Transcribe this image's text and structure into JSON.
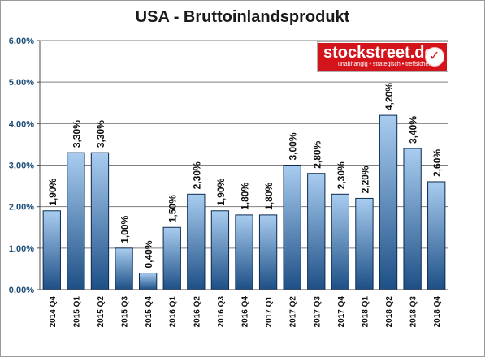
{
  "chart_data": {
    "type": "bar",
    "title": "USA - Bruttoinlandsprodukt",
    "categories": [
      "2014 Q4",
      "2015 Q1",
      "2015 Q2",
      "2015 Q3",
      "2015 Q4",
      "2016 Q1",
      "2016 Q2",
      "2016 Q3",
      "2016 Q4",
      "2017 Q1",
      "2017 Q2",
      "2017 Q3",
      "2017 Q4",
      "2018 Q1",
      "2018 Q2",
      "2018 Q3",
      "2018 Q4"
    ],
    "values": [
      1.9,
      3.3,
      3.3,
      1.0,
      0.4,
      1.5,
      2.3,
      1.9,
      1.8,
      1.8,
      3.0,
      2.8,
      2.3,
      2.2,
      4.2,
      3.4,
      2.6
    ],
    "data_labels": [
      "1,90%",
      "3,30%",
      "3,30%",
      "1,00%",
      "0,40%",
      "1,50%",
      "2,30%",
      "1,90%",
      "1,80%",
      "1,80%",
      "3,00%",
      "2,80%",
      "2,30%",
      "2,20%",
      "4,20%",
      "3,40%",
      "2,60%"
    ],
    "yticks": [
      0,
      1,
      2,
      3,
      4,
      5,
      6
    ],
    "ytick_labels": [
      "0,00%",
      "1,00%",
      "2,00%",
      "3,00%",
      "4,00%",
      "5,00%",
      "6,00%"
    ],
    "ylim": [
      0,
      6
    ],
    "xlabel": "",
    "ylabel": "",
    "grid": true,
    "legend": false,
    "colors": {
      "bar_top": "#a9cdf0",
      "bar_bottom": "#1d4f86",
      "bar_stroke": "#0d2a4d",
      "axis_label": "#1f4e79",
      "grid": "#7f7f7f"
    }
  },
  "logo": {
    "name": "stockstreet.de",
    "tagline": "unabhängig • strategisch • treffsicher",
    "color": "#d3141b"
  }
}
